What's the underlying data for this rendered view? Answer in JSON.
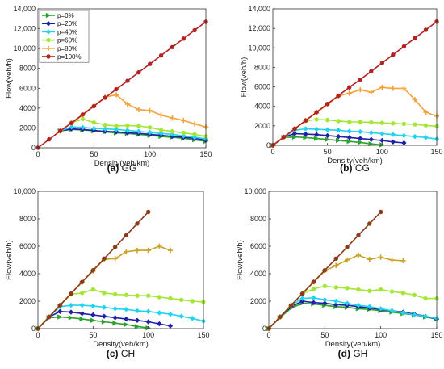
{
  "chart_data": [
    {
      "type": "line",
      "caption": "(a) GG",
      "caption_label": "(a)",
      "caption_name": "GG",
      "xlabel": "Density(veh/km)",
      "ylabel": "Flow(veh/h)",
      "xlim": [
        0,
        150
      ],
      "ylim": [
        0,
        14000
      ],
      "xticks": [
        0,
        50,
        100,
        150
      ],
      "yticks": [
        0,
        2000,
        4000,
        6000,
        8000,
        10000,
        12000,
        14000
      ],
      "ytick_labels": [
        "0",
        "2000",
        "4000",
        "6000",
        "8000",
        "10,000",
        "12,000",
        "14,000"
      ],
      "grid": false,
      "legend": {
        "placement": "top-left",
        "entries": [
          "p=0%",
          "p=20%",
          "p=40%",
          "p=60%",
          "p=80%",
          "p=100%"
        ]
      },
      "series": [
        {
          "name": "p=0%",
          "color": "#2ca02c",
          "marker": "triangle",
          "x": [
            20,
            30,
            40,
            50,
            60,
            70,
            80,
            90,
            100,
            110,
            120,
            130,
            140,
            150
          ],
          "y": [
            1700,
            1850,
            1800,
            1700,
            1600,
            1500,
            1450,
            1350,
            1250,
            1150,
            1050,
            950,
            800,
            650
          ]
        },
        {
          "name": "p=20%",
          "color": "#1f1fa8",
          "marker": "diamond",
          "x": [
            20,
            30,
            40,
            50,
            60,
            70,
            80,
            90,
            100,
            110,
            120,
            130,
            140,
            150
          ],
          "y": [
            1700,
            1900,
            1850,
            1750,
            1650,
            1600,
            1500,
            1450,
            1350,
            1250,
            1150,
            1050,
            950,
            750
          ]
        },
        {
          "name": "p=40%",
          "color": "#22d3ee",
          "marker": "diamond",
          "x": [
            20,
            30,
            40,
            50,
            60,
            70,
            80,
            90,
            100,
            110,
            120,
            130,
            140,
            150
          ],
          "y": [
            1700,
            2100,
            2050,
            1950,
            1900,
            1850,
            1750,
            1650,
            1550,
            1450,
            1350,
            1200,
            1050,
            900
          ]
        },
        {
          "name": "p=60%",
          "color": "#a3e635",
          "marker": "circle",
          "x": [
            20,
            30,
            40,
            50,
            60,
            70,
            80,
            90,
            100,
            110,
            120,
            130,
            140,
            150
          ],
          "y": [
            1700,
            2500,
            2900,
            2550,
            2300,
            2200,
            2250,
            2200,
            2050,
            1800,
            1650,
            1500,
            1350,
            1150
          ]
        },
        {
          "name": "p=80%",
          "color": "#f5a23a",
          "marker": "plus",
          "x": [
            20,
            30,
            40,
            50,
            60,
            70,
            80,
            90,
            100,
            110,
            120,
            130,
            140,
            150
          ],
          "y": [
            1700,
            2500,
            3300,
            4200,
            5100,
            5350,
            4400,
            3850,
            3750,
            3300,
            3000,
            2750,
            2400,
            2100
          ]
        },
        {
          "name": "p=100%",
          "color": "#b22222",
          "marker": "circle",
          "x": [
            0,
            10,
            20,
            30,
            40,
            50,
            60,
            70,
            80,
            90,
            100,
            110,
            120,
            130,
            140,
            150
          ],
          "y": [
            0,
            850,
            1700,
            2500,
            3350,
            4200,
            5050,
            5900,
            6750,
            7600,
            8450,
            9300,
            10150,
            11000,
            11850,
            12700
          ]
        }
      ]
    },
    {
      "type": "line",
      "caption": "(b) CG",
      "caption_label": "(b)",
      "caption_name": "CG",
      "xlabel": "Density(veh/km)",
      "ylabel": "Flow(veh/h)",
      "xlim": [
        0,
        150
      ],
      "ylim": [
        0,
        14000
      ],
      "xticks": [
        0,
        50,
        100,
        150
      ],
      "yticks": [
        0,
        2000,
        4000,
        6000,
        8000,
        10000,
        12000,
        14000
      ],
      "ytick_labels": [
        "0",
        "2000",
        "4000",
        "6000",
        "8000",
        "10,000",
        "12,000",
        "14,000"
      ],
      "grid": false,
      "series": [
        {
          "name": "p=0%",
          "color": "#2ca02c",
          "marker": "triangle",
          "x": [
            0,
            10,
            20,
            30,
            40,
            50,
            60,
            70,
            80,
            90,
            100
          ],
          "y": [
            0,
            800,
            850,
            800,
            700,
            600,
            500,
            400,
            300,
            150,
            50
          ]
        },
        {
          "name": "p=20%",
          "color": "#1f1fa8",
          "marker": "diamond",
          "x": [
            0,
            10,
            20,
            30,
            40,
            50,
            60,
            70,
            80,
            90,
            100,
            110,
            120
          ],
          "y": [
            0,
            850,
            1200,
            1150,
            1100,
            1000,
            900,
            800,
            700,
            600,
            500,
            350,
            250
          ]
        },
        {
          "name": "p=40%",
          "color": "#22d3ee",
          "marker": "diamond",
          "x": [
            0,
            10,
            20,
            30,
            40,
            50,
            60,
            70,
            80,
            90,
            100,
            110,
            120,
            130,
            140,
            150
          ],
          "y": [
            0,
            850,
            1550,
            1700,
            1650,
            1600,
            1550,
            1450,
            1400,
            1300,
            1200,
            1100,
            1000,
            900,
            800,
            650
          ]
        },
        {
          "name": "p=60%",
          "color": "#a3e635",
          "marker": "circle",
          "x": [
            0,
            10,
            20,
            30,
            40,
            50,
            60,
            70,
            80,
            90,
            100,
            110,
            120,
            130,
            140,
            150
          ],
          "y": [
            0,
            850,
            1700,
            2500,
            2650,
            2600,
            2500,
            2400,
            2400,
            2350,
            2300,
            2250,
            2200,
            2150,
            2050,
            1950
          ]
        },
        {
          "name": "p=80%",
          "color": "#f5a23a",
          "marker": "plus",
          "x": [
            0,
            10,
            20,
            30,
            40,
            50,
            60,
            70,
            80,
            90,
            100,
            110,
            120,
            130,
            140,
            150
          ],
          "y": [
            0,
            850,
            1700,
            2550,
            3350,
            4200,
            5050,
            5350,
            5700,
            5450,
            5950,
            5850,
            5850,
            4700,
            3400,
            3000
          ]
        },
        {
          "name": "p=100%",
          "color": "#b22222",
          "marker": "circle",
          "x": [
            0,
            10,
            20,
            30,
            40,
            50,
            60,
            70,
            80,
            90,
            100,
            110,
            120,
            130,
            140,
            150
          ],
          "y": [
            0,
            850,
            1700,
            2550,
            3400,
            4250,
            5100,
            5950,
            6750,
            7600,
            8450,
            9300,
            10150,
            11000,
            11850,
            12700
          ]
        }
      ]
    },
    {
      "type": "line",
      "caption": "(c) CH",
      "caption_label": "(c)",
      "caption_name": "CH",
      "xlabel": "Density(veh/km)",
      "ylabel": "Flow(veh/h)",
      "xlim": [
        0,
        150
      ],
      "ylim": [
        0,
        10000
      ],
      "xticks": [
        0,
        50,
        100,
        150
      ],
      "yticks": [
        0,
        2000,
        4000,
        6000,
        8000,
        10000
      ],
      "ytick_labels": [
        "0",
        "2000",
        "4000",
        "6000",
        "8000",
        "10,000"
      ],
      "grid": false,
      "series": [
        {
          "name": "p=0%",
          "color": "#2ca02c",
          "marker": "triangle",
          "x": [
            0,
            10,
            20,
            30,
            40,
            50,
            60,
            70,
            80,
            90,
            100
          ],
          "y": [
            0,
            800,
            850,
            800,
            700,
            600,
            500,
            400,
            300,
            150,
            50
          ]
        },
        {
          "name": "p=20%",
          "color": "#1f1fa8",
          "marker": "diamond",
          "x": [
            0,
            10,
            20,
            30,
            40,
            50,
            60,
            70,
            80,
            90,
            100,
            110,
            120
          ],
          "y": [
            0,
            850,
            1250,
            1200,
            1100,
            1000,
            900,
            800,
            700,
            600,
            500,
            350,
            200
          ]
        },
        {
          "name": "p=40%",
          "color": "#22d3ee",
          "marker": "diamond",
          "x": [
            0,
            10,
            20,
            30,
            40,
            50,
            60,
            70,
            80,
            90,
            100,
            110,
            120,
            130,
            140,
            150
          ],
          "y": [
            0,
            850,
            1600,
            1700,
            1700,
            1650,
            1550,
            1450,
            1400,
            1300,
            1250,
            1150,
            1050,
            900,
            750,
            550
          ]
        },
        {
          "name": "p=60%",
          "color": "#a3e635",
          "marker": "circle",
          "x": [
            0,
            10,
            20,
            30,
            40,
            50,
            60,
            70,
            80,
            90,
            100,
            110,
            120,
            130,
            140,
            150
          ],
          "y": [
            0,
            850,
            1700,
            2500,
            2600,
            2850,
            2600,
            2500,
            2450,
            2400,
            2400,
            2300,
            2200,
            2100,
            2000,
            1950
          ]
        },
        {
          "name": "p=80%",
          "color": "#c9a227",
          "marker": "plus",
          "x": [
            0,
            10,
            20,
            30,
            40,
            50,
            60,
            70,
            80,
            90,
            100,
            110,
            120
          ],
          "y": [
            0,
            850,
            1700,
            2550,
            3400,
            4200,
            5050,
            5100,
            5600,
            5700,
            5700,
            6000,
            5700
          ]
        },
        {
          "name": "p=100%",
          "color": "#8b3a1a",
          "marker": "circle",
          "x": [
            0,
            10,
            20,
            30,
            40,
            50,
            60,
            70,
            80,
            90,
            100
          ],
          "y": [
            0,
            850,
            1700,
            2550,
            3400,
            4250,
            5100,
            5950,
            6800,
            7650,
            8500
          ]
        }
      ]
    },
    {
      "type": "line",
      "caption": "(d) GH",
      "caption_label": "(d)",
      "caption_name": "GH",
      "xlabel": "Density(veh/km)",
      "ylabel": "Flow(veh/h)",
      "xlim": [
        0,
        150
      ],
      "ylim": [
        0,
        10000
      ],
      "xticks": [
        0,
        50,
        100,
        150
      ],
      "yticks": [
        0,
        2000,
        4000,
        6000,
        8000,
        10000
      ],
      "ytick_labels": [
        "0",
        "2000",
        "4000",
        "6000",
        "8000",
        "10,000"
      ],
      "grid": false,
      "series": [
        {
          "name": "p=0%",
          "color": "#2ca02c",
          "marker": "triangle",
          "x": [
            0,
            10,
            20,
            30,
            40,
            50,
            60,
            70,
            80,
            90,
            100,
            110,
            120,
            130,
            140,
            150
          ],
          "y": [
            0,
            800,
            1500,
            1850,
            1800,
            1700,
            1600,
            1550,
            1450,
            1400,
            1300,
            1200,
            1100,
            1000,
            850,
            700
          ]
        },
        {
          "name": "p=20%",
          "color": "#1f1fa8",
          "marker": "diamond",
          "x": [
            0,
            10,
            20,
            30,
            40,
            50,
            60,
            70,
            80,
            90,
            100,
            110,
            120,
            130,
            140,
            150
          ],
          "y": [
            0,
            850,
            1600,
            2000,
            1900,
            1850,
            1750,
            1700,
            1600,
            1500,
            1400,
            1300,
            1200,
            1050,
            900,
            700
          ]
        },
        {
          "name": "p=40%",
          "color": "#22d3ee",
          "marker": "diamond",
          "x": [
            0,
            10,
            20,
            30,
            40,
            50,
            60,
            70,
            80,
            90,
            100,
            110,
            120,
            130,
            140,
            150
          ],
          "y": [
            0,
            850,
            1700,
            2200,
            2250,
            2100,
            2000,
            1850,
            1700,
            1600,
            1450,
            1300,
            1150,
            1000,
            900,
            750
          ]
        },
        {
          "name": "p=60%",
          "color": "#a3e635",
          "marker": "circle",
          "x": [
            0,
            10,
            20,
            30,
            40,
            50,
            60,
            70,
            80,
            90,
            100,
            110,
            120,
            130,
            140,
            150
          ],
          "y": [
            0,
            850,
            1700,
            2550,
            2900,
            3100,
            3000,
            2950,
            2850,
            2750,
            2850,
            2700,
            2600,
            2450,
            2200,
            2200
          ]
        },
        {
          "name": "p=80%",
          "color": "#c9a227",
          "marker": "plus",
          "x": [
            0,
            10,
            20,
            30,
            40,
            50,
            60,
            70,
            80,
            90,
            100,
            110,
            120
          ],
          "y": [
            0,
            850,
            1700,
            2550,
            3400,
            4200,
            4600,
            5000,
            5350,
            5050,
            5200,
            5000,
            4950
          ]
        },
        {
          "name": "p=100%",
          "color": "#8b3a1a",
          "marker": "circle",
          "x": [
            0,
            10,
            20,
            30,
            40,
            50,
            60,
            70,
            80,
            90,
            100
          ],
          "y": [
            0,
            850,
            1700,
            2550,
            3400,
            4250,
            5100,
            5950,
            6800,
            7650,
            8500
          ]
        }
      ]
    }
  ]
}
